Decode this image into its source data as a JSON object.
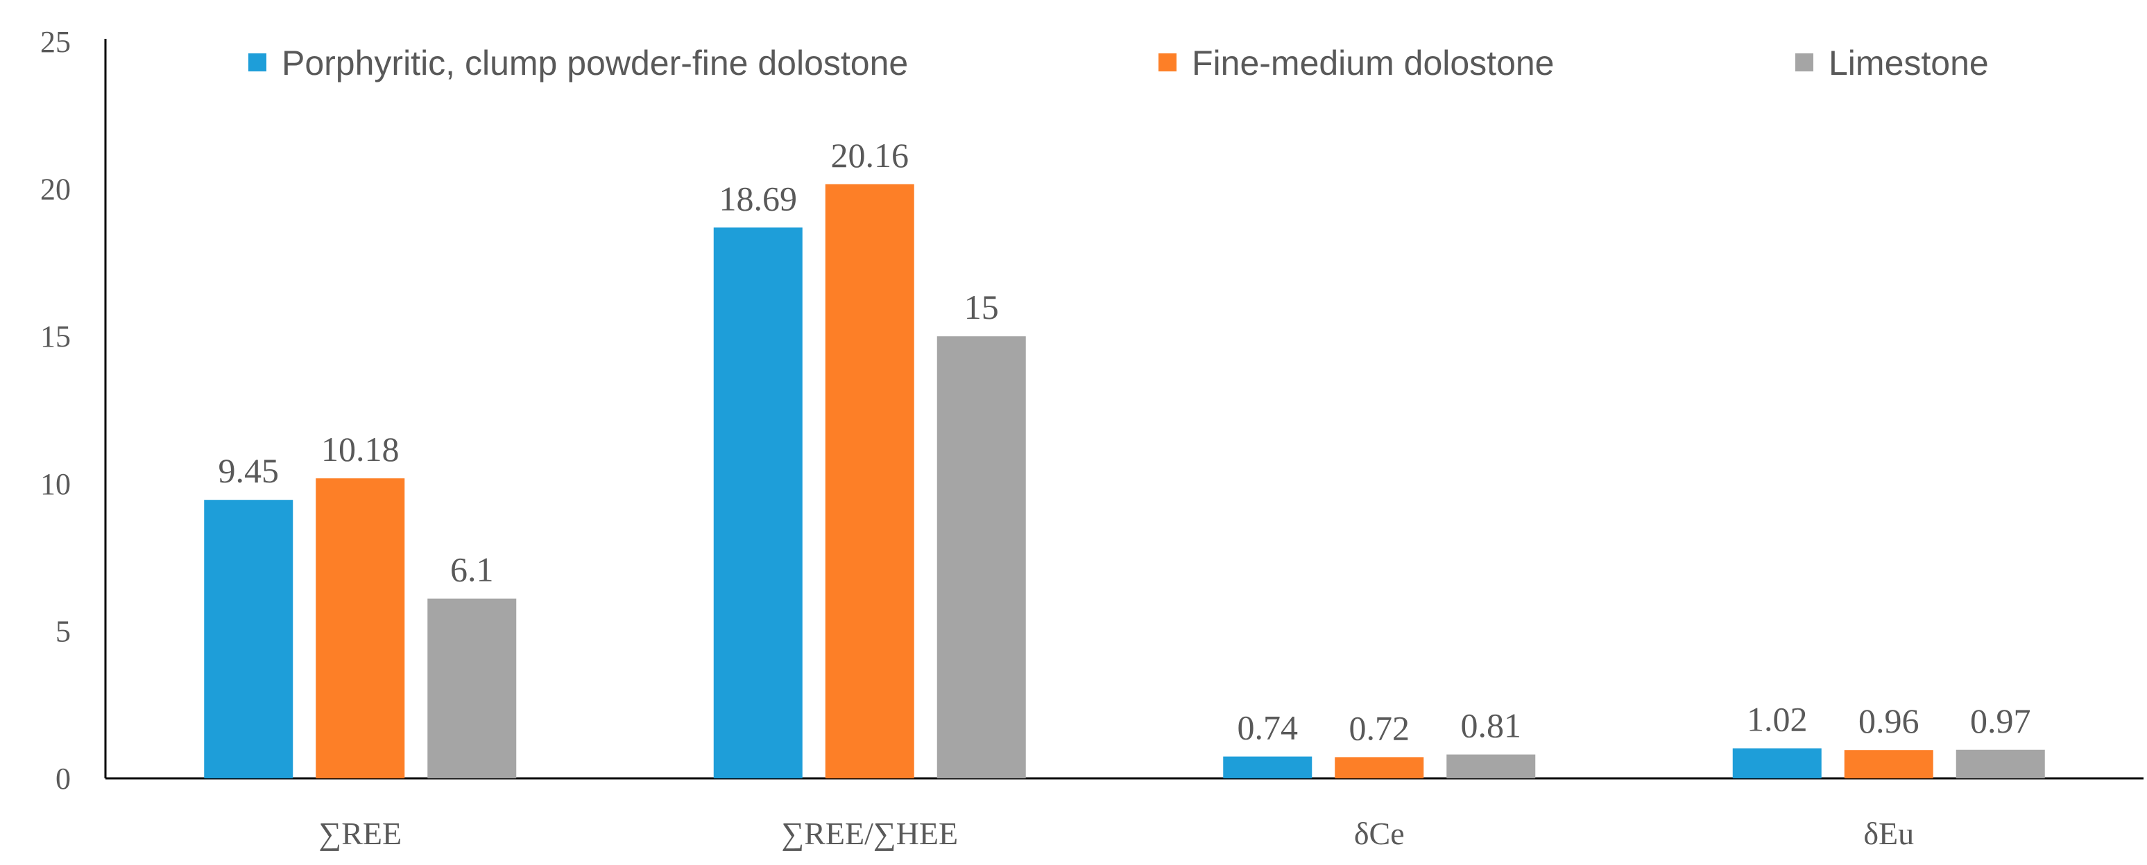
{
  "chart_data": {
    "type": "bar",
    "title": "",
    "xlabel": "",
    "ylabel": "",
    "ylim": [
      0,
      25
    ],
    "yticks": [
      0,
      5,
      10,
      15,
      20,
      25
    ],
    "categories": [
      "∑REE",
      "∑REE/∑HEE",
      "δCe",
      "δEu"
    ],
    "series": [
      {
        "name": "Porphyritic, clump powder-fine dolostone",
        "color": "#1e9ed9",
        "values": [
          9.45,
          18.69,
          0.74,
          1.02
        ],
        "labels": [
          "9.45",
          "18.69",
          "0.74",
          "1.02"
        ]
      },
      {
        "name": "Fine-medium dolostone",
        "color": "#fd7f27",
        "values": [
          10.18,
          20.16,
          0.72,
          0.96
        ],
        "labels": [
          "10.18",
          "20.16",
          "0.72",
          "0.96"
        ]
      },
      {
        "name": "Limestone",
        "color": "#a5a5a5",
        "values": [
          6.1,
          15,
          0.81,
          0.97
        ],
        "labels": [
          "6.1",
          "15",
          "0.81",
          "0.97"
        ]
      }
    ],
    "legend_position": "top",
    "grid": false
  }
}
